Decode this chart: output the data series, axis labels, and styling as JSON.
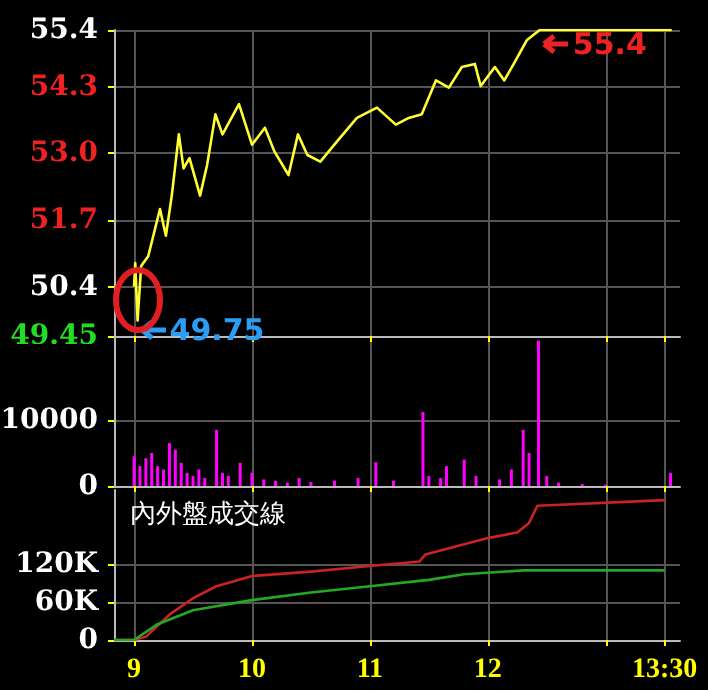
{
  "chart_data": [
    {
      "type": "line",
      "xlim": [
        8.83,
        13.63
      ],
      "xticks": [
        9,
        10,
        11,
        12,
        13,
        13.5
      ],
      "ylim": [
        49.45,
        55.4
      ],
      "yticks": [
        49.45,
        50.4,
        51.7,
        {
          "value": 53,
          "label": "53.0"
        },
        54.3,
        55.4
      ],
      "tick_labels": "y",
      "grid": true,
      "series": [
        {
          "color": "#ffff33",
          "x": [
            9.0,
            9.01,
            9.03,
            9.06,
            9.12,
            9.22,
            9.27,
            9.32,
            9.38,
            9.42,
            9.47,
            9.56,
            9.62,
            9.69,
            9.75,
            9.89,
            10.0,
            10.11,
            10.19,
            10.31,
            10.39,
            10.47,
            10.58,
            10.72,
            10.89,
            11.06,
            11.22,
            11.33,
            11.44,
            11.56,
            11.67,
            11.78,
            11.89,
            11.94,
            12.06,
            12.14,
            12.22,
            12.33,
            12.44,
            13.56
          ],
          "values": [
            50.41,
            50.87,
            49.75,
            50.81,
            51.0,
            51.92,
            51.4,
            52.18,
            53.37,
            52.71,
            52.91,
            52.18,
            52.78,
            53.76,
            53.37,
            53.96,
            53.17,
            53.5,
            53.04,
            52.58,
            53.37,
            52.97,
            52.84,
            53.23,
            53.69,
            53.89,
            53.56,
            53.69,
            53.76,
            54.42,
            54.28,
            54.68,
            54.74,
            54.31,
            54.68,
            54.42,
            54.74,
            55.2,
            55.4,
            55.4
          ]
        }
      ],
      "annotations": [
        {
          "text": "55.4",
          "x": 12.45,
          "y": 55.4
        },
        {
          "text": "49.75",
          "x": 9.03,
          "y": 49.75
        }
      ]
    },
    {
      "type": "bar",
      "xlim": [
        8.83,
        13.63
      ],
      "xticks": [
        9,
        10,
        11,
        12,
        13,
        13.5
      ],
      "ylim": [
        0,
        22700
      ],
      "yticks": [
        0,
        10000
      ],
      "tick_labels": "y",
      "grid": true,
      "series": [
        {
          "color": "#ff00ff",
          "x": [
            9.0,
            9.05,
            9.1,
            9.15,
            9.2,
            9.25,
            9.3,
            9.35,
            9.4,
            9.45,
            9.5,
            9.55,
            9.6,
            9.7,
            9.75,
            9.8,
            9.9,
            10.0,
            10.1,
            10.2,
            10.3,
            10.4,
            10.5,
            10.7,
            10.9,
            11.05,
            11.2,
            11.45,
            11.5,
            11.6,
            11.65,
            11.8,
            11.9,
            12.1,
            12.2,
            12.3,
            12.35,
            12.43,
            12.5,
            12.6,
            12.8,
            13.0,
            13.55
          ],
          "values": [
            4500,
            3000,
            4200,
            5000,
            3000,
            2500,
            6500,
            5500,
            3500,
            2000,
            1500,
            2500,
            1200,
            8500,
            2000,
            1500,
            3500,
            2000,
            1000,
            800,
            500,
            1200,
            600,
            800,
            1200,
            3600,
            800,
            11200,
            1500,
            1200,
            3000,
            4000,
            1500,
            1000,
            2500,
            8500,
            5000,
            22000,
            1500,
            500,
            300,
            200,
            2000
          ]
        }
      ]
    },
    {
      "type": "line",
      "title": "內外盤成交線",
      "xlim": [
        8.83,
        13.63
      ],
      "xticks": [
        9,
        10,
        11,
        12,
        {
          "value": 13,
          "label": null
        },
        {
          "value": 13.5,
          "label": "13:30"
        }
      ],
      "ylim": [
        0,
        237000
      ],
      "yticks": [
        0,
        {
          "value": 60000,
          "label": "60K"
        },
        {
          "value": 120000,
          "label": "120K"
        }
      ],
      "grid": true,
      "series": [
        {
          "color": "#cc2222",
          "x": [
            8.83,
            9.0,
            9.1,
            9.3,
            9.5,
            9.7,
            10.0,
            10.5,
            11.0,
            11.42,
            11.47,
            12.0,
            12.25,
            12.35,
            12.42,
            13.5
          ],
          "values": [
            0,
            0,
            5000,
            40000,
            66000,
            85000,
            101000,
            108000,
            117000,
            124000,
            135000,
            161000,
            170000,
            185000,
            212000,
            221000
          ]
        },
        {
          "color": "#22aa22",
          "x": [
            8.83,
            9.0,
            9.2,
            9.5,
            10.0,
            10.5,
            11.0,
            11.5,
            11.8,
            12.3,
            13.5
          ],
          "values": [
            0,
            0,
            25000,
            47000,
            63000,
            75000,
            85000,
            95000,
            104000,
            110000,
            110000
          ]
        }
      ]
    }
  ]
}
